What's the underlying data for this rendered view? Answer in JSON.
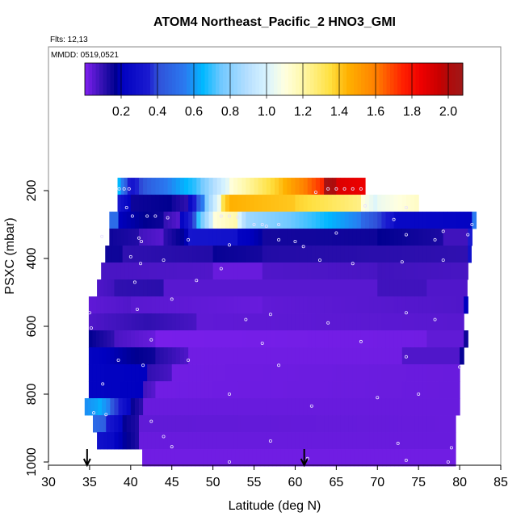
{
  "chart_data": {
    "type": "heatmap",
    "title": "ATOM4 Northeast_Pacific_2 HNO3_GMI",
    "subtitle_flights": "Flts: 12,13",
    "annotation_dates": "MMDD: 0519,0521",
    "xlabel": "Latitude (deg N)",
    "ylabel": "PSXC (mbar)",
    "xlim": [
      30,
      85
    ],
    "ylim": [
      1000,
      0
    ],
    "y_reversed": true,
    "xticks": [
      "30",
      "35",
      "40",
      "45",
      "50",
      "55",
      "60",
      "65",
      "70",
      "75",
      "80",
      "85"
    ],
    "yticks": [
      "200",
      "400",
      "600",
      "800",
      "1000"
    ],
    "colorbar": {
      "range": [
        0,
        2.08
      ],
      "ticks": [
        "0.2",
        "0.4",
        "0.6",
        "0.8",
        "1.0",
        "1.2",
        "1.4",
        "1.6",
        "1.8",
        "2.0"
      ],
      "stops": [
        [
          0,
          "#8020f0"
        ],
        [
          0.1,
          "#3010b0"
        ],
        [
          0.17,
          "#000090"
        ],
        [
          0.2,
          "#0000c0"
        ],
        [
          0.35,
          "#1a1ad0"
        ],
        [
          0.4,
          "#3050d8"
        ],
        [
          0.55,
          "#2a7af0"
        ],
        [
          0.65,
          "#00b8ff"
        ],
        [
          0.75,
          "#70c8ff"
        ],
        [
          0.9,
          "#b8e0ff"
        ],
        [
          1.0,
          "#d8f4ff"
        ],
        [
          1.1,
          "#ffffe0"
        ],
        [
          1.2,
          "#fff8a8"
        ],
        [
          1.35,
          "#ffe040"
        ],
        [
          1.45,
          "#ffb000"
        ],
        [
          1.6,
          "#ff8000"
        ],
        [
          1.75,
          "#ff2000"
        ],
        [
          1.85,
          "#ee0000"
        ],
        [
          1.95,
          "#c80000"
        ],
        [
          2.0,
          "#b00a0a"
        ],
        [
          2.08,
          "#a01818"
        ]
      ]
    },
    "rows": [
      {
        "p": [
          162,
          212
        ],
        "segments": [
          [
            38.4,
            40,
            0.7,
            0.3
          ],
          [
            40,
            42,
            0.3,
            0.45
          ],
          [
            42,
            48,
            0.45,
            0.7
          ],
          [
            48,
            52,
            0.7,
            1.05
          ],
          [
            52,
            58,
            1.1,
            1.4
          ],
          [
            58,
            63.5,
            1.4,
            1.75
          ],
          [
            63.5,
            65,
            2.06,
            2.0
          ],
          [
            65,
            68.5,
            1.9,
            1.85
          ]
        ]
      },
      {
        "p": [
          212,
          262
        ],
        "segments": [
          [
            38.4,
            40,
            0.35,
            0.2
          ],
          [
            40,
            45,
            0.15,
            0.17
          ],
          [
            45,
            47,
            0.15,
            0.1
          ],
          [
            47,
            49,
            0.2,
            0.6
          ],
          [
            49,
            51,
            0.75,
            1.1
          ],
          [
            51,
            52,
            1.3,
            1.45
          ],
          [
            52,
            60,
            1.45,
            1.4
          ],
          [
            60,
            68,
            1.38,
            1.25
          ],
          [
            68,
            70,
            1.12,
            1.0
          ],
          [
            70,
            75,
            1.05,
            1.15
          ]
        ]
      },
      {
        "p": [
          262,
          312
        ],
        "segments": [
          [
            37.4,
            38.5,
            0.5,
            0.5
          ],
          [
            38.5,
            44,
            0.2,
            0.15
          ],
          [
            44,
            46,
            0.1,
            0.05
          ],
          [
            46,
            48,
            0.2,
            0.45
          ],
          [
            48,
            50,
            0.65,
            1.0
          ],
          [
            50,
            53,
            1.1,
            1.2
          ],
          [
            53,
            54,
            1.05,
            0.85
          ],
          [
            54,
            62,
            0.85,
            0.7
          ],
          [
            62,
            68,
            0.7,
            0.55
          ],
          [
            68,
            72,
            0.5,
            0.3
          ],
          [
            72,
            81.5,
            0.25,
            0.22
          ],
          [
            81.5,
            82,
            0.55,
            0.55
          ]
        ]
      },
      {
        "p": [
          312,
          362
        ],
        "segments": [
          [
            37.4,
            41,
            0.15,
            0.12
          ],
          [
            41,
            44,
            0.08,
            0.05
          ],
          [
            44,
            47,
            0.1,
            0.2
          ],
          [
            47,
            53,
            0.32,
            0.3
          ],
          [
            53,
            56,
            0.22,
            0.18
          ],
          [
            56,
            70,
            0.14,
            0.15
          ],
          [
            70,
            78,
            0.17,
            0.13
          ],
          [
            78,
            81,
            0.08,
            0.08
          ],
          [
            81,
            81.5,
            0.35,
            0.35
          ]
        ]
      },
      {
        "p": [
          362,
          412
        ],
        "segments": [
          [
            36.9,
            39,
            0.15,
            0.15
          ],
          [
            39,
            50,
            0.1,
            0.12
          ],
          [
            50,
            56,
            0.16,
            0.14
          ],
          [
            56,
            81,
            0.12,
            0.1
          ],
          [
            81,
            81.4,
            0.3,
            0.3
          ]
        ]
      },
      {
        "p": [
          412,
          462
        ],
        "segments": [
          [
            36.4,
            50,
            0.07,
            0.06
          ],
          [
            50,
            56,
            0.03,
            0.03
          ],
          [
            56,
            70,
            0.06,
            0.07
          ],
          [
            70,
            81,
            0.08,
            0.07
          ]
        ]
      },
      {
        "p": [
          462,
          512
        ],
        "segments": [
          [
            35.9,
            38,
            0.06,
            0.08
          ],
          [
            38,
            44,
            0.1,
            0.11
          ],
          [
            44,
            70,
            0.05,
            0.05
          ],
          [
            70,
            76,
            0.08,
            0.08
          ],
          [
            76,
            80.9,
            0.06,
            0.06
          ]
        ]
      },
      {
        "p": [
          512,
          562
        ],
        "segments": [
          [
            34.9,
            40,
            0.04,
            0.06
          ],
          [
            40,
            56,
            0.05,
            0.03
          ],
          [
            56,
            80.5,
            0.04,
            0.06
          ],
          [
            80.5,
            81,
            0.2,
            0.2
          ]
        ]
      },
      {
        "p": [
          562,
          612
        ],
        "segments": [
          [
            34.9,
            42,
            0.06,
            0.1
          ],
          [
            42,
            48,
            0.1,
            0.07
          ],
          [
            48,
            80.5,
            0.04,
            0.05
          ]
        ]
      },
      {
        "p": [
          612,
          662
        ],
        "segments": [
          [
            34.9,
            38,
            0.17,
            0.1
          ],
          [
            38,
            43,
            0.07,
            0.03
          ],
          [
            43,
            76,
            0.01,
            0.02
          ],
          [
            76,
            80.5,
            0.04,
            0.04
          ],
          [
            80.5,
            81,
            0.15,
            0.15
          ]
        ]
      },
      {
        "p": [
          662,
          712
        ],
        "segments": [
          [
            34.9,
            37,
            0.22,
            0.2
          ],
          [
            37,
            43,
            0.2,
            0.15
          ],
          [
            43,
            47,
            0.12,
            0.06
          ],
          [
            47,
            73,
            0.02,
            0.02
          ],
          [
            73,
            80,
            0.06,
            0.06
          ],
          [
            80,
            80.5,
            0.16,
            0.16
          ]
        ]
      },
      {
        "p": [
          712,
          762
        ],
        "segments": [
          [
            34.9,
            42,
            0.22,
            0.2
          ],
          [
            42,
            45,
            0.1,
            0.07
          ],
          [
            45,
            80,
            0.02,
            0.03
          ]
        ]
      },
      {
        "p": [
          762,
          812
        ],
        "segments": [
          [
            34.9,
            41.5,
            0.22,
            0.2
          ],
          [
            41.5,
            43,
            0.08,
            0.05
          ],
          [
            43,
            80,
            0.02,
            0.03
          ]
        ]
      },
      {
        "p": [
          812,
          862
        ],
        "segments": [
          [
            34.4,
            36,
            0.58,
            0.62
          ],
          [
            36,
            37.5,
            0.65,
            0.55
          ],
          [
            37.5,
            40,
            0.45,
            0.22
          ],
          [
            40,
            41.5,
            0.17,
            0.1
          ],
          [
            41.5,
            80,
            0.03,
            0.03
          ]
        ]
      },
      {
        "p": [
          862,
          912
        ],
        "segments": [
          [
            35.4,
            37,
            0.5,
            0.45
          ],
          [
            37,
            39,
            0.35,
            0.22
          ],
          [
            39,
            41,
            0.17,
            0.12
          ],
          [
            41,
            79.5,
            0.04,
            0.03
          ]
        ]
      },
      {
        "p": [
          912,
          962
        ],
        "segments": [
          [
            35.9,
            38,
            0.3,
            0.25
          ],
          [
            38,
            41,
            0.22,
            0.12
          ],
          [
            41,
            79.5,
            0.03,
            0.03
          ]
        ]
      },
      {
        "p": [
          962,
          1012
        ],
        "segments": [
          [
            41.4,
            79.5,
            0.02,
            0.02
          ]
        ]
      }
    ],
    "flight_points": [
      [
        38.6,
        195
      ],
      [
        39.2,
        195
      ],
      [
        39.8,
        195
      ],
      [
        64,
        195
      ],
      [
        65,
        195
      ],
      [
        66,
        195
      ],
      [
        67,
        195
      ],
      [
        68,
        195
      ],
      [
        62.5,
        205
      ],
      [
        39.5,
        250
      ],
      [
        68.5,
        245
      ],
      [
        73.5,
        250
      ],
      [
        40.2,
        275
      ],
      [
        42,
        275
      ],
      [
        43,
        275
      ],
      [
        44.5,
        280
      ],
      [
        51,
        275
      ],
      [
        52,
        275
      ],
      [
        53,
        278
      ],
      [
        55,
        300
      ],
      [
        56,
        300
      ],
      [
        58,
        300
      ],
      [
        56.5,
        305
      ],
      [
        72,
        285
      ],
      [
        78,
        320
      ],
      [
        81.5,
        300
      ],
      [
        36.5,
        335
      ],
      [
        41,
        340
      ],
      [
        41.3,
        350
      ],
      [
        47,
        345
      ],
      [
        52,
        360
      ],
      [
        58,
        345
      ],
      [
        60,
        350
      ],
      [
        61,
        365
      ],
      [
        65,
        325
      ],
      [
        73.5,
        330
      ],
      [
        77,
        345
      ],
      [
        81,
        330
      ],
      [
        40,
        395
      ],
      [
        41.2,
        415
      ],
      [
        44,
        405
      ],
      [
        51,
        430
      ],
      [
        63,
        405
      ],
      [
        67,
        415
      ],
      [
        73,
        410
      ],
      [
        78,
        405
      ],
      [
        40.5,
        470
      ],
      [
        48,
        465
      ],
      [
        45,
        520
      ],
      [
        57,
        565
      ],
      [
        64,
        590
      ],
      [
        35,
        560
      ],
      [
        40.8,
        550
      ],
      [
        54,
        580
      ],
      [
        73.5,
        560
      ],
      [
        77,
        580
      ],
      [
        35.2,
        605
      ],
      [
        42.5,
        640
      ],
      [
        56,
        650
      ],
      [
        68,
        645
      ],
      [
        38.5,
        700
      ],
      [
        41.5,
        715
      ],
      [
        47,
        700
      ],
      [
        58,
        715
      ],
      [
        73.5,
        690
      ],
      [
        80,
        720
      ],
      [
        36.6,
        770
      ],
      [
        52,
        800
      ],
      [
        35.5,
        855
      ],
      [
        37,
        860
      ],
      [
        42.5,
        880
      ],
      [
        62,
        835
      ],
      [
        70,
        810
      ],
      [
        75,
        800
      ],
      [
        44,
        925
      ],
      [
        57,
        938
      ],
      [
        72.5,
        945
      ],
      [
        79,
        958
      ],
      [
        45,
        955
      ],
      [
        52,
        1000
      ],
      [
        61.5,
        990
      ],
      [
        73.5,
        995
      ],
      [
        78.6,
        1000
      ]
    ],
    "arrows_lat": [
      34.7,
      61.1
    ]
  }
}
